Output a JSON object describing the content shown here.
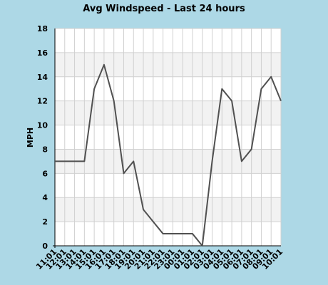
{
  "chart_data": {
    "type": "line",
    "title": "Avg Windspeed - Last 24 hours",
    "xlabel": "",
    "ylabel": "MPH",
    "ylim": [
      0,
      18
    ],
    "yticks": [
      0,
      2,
      4,
      6,
      8,
      10,
      12,
      14,
      16,
      18
    ],
    "grid": true,
    "legend": "none",
    "x": [
      "11:01",
      "12:01",
      "13:01",
      "14:01",
      "15:01",
      "16:01",
      "17:01",
      "18:01",
      "19:01",
      "20:01",
      "21:01",
      "22:01",
      "23:01",
      "00:01",
      "01:01",
      "02:01",
      "03:01",
      "04:01",
      "05:01",
      "06:01",
      "07:01",
      "08:01",
      "09:01",
      "10:01"
    ],
    "series": [
      {
        "values": [
          7,
          7,
          7,
          7,
          13,
          15,
          12,
          6,
          7,
          3,
          2,
          1,
          1,
          1,
          1,
          0,
          7,
          13,
          12,
          7,
          8,
          13,
          14,
          12
        ]
      }
    ],
    "colors": {
      "background": "#add8e6",
      "plot_background": "#ffffff",
      "band": "#f2f2f2",
      "grid": "#d0d0d0",
      "line": "#505050",
      "axis": "#000000"
    }
  }
}
